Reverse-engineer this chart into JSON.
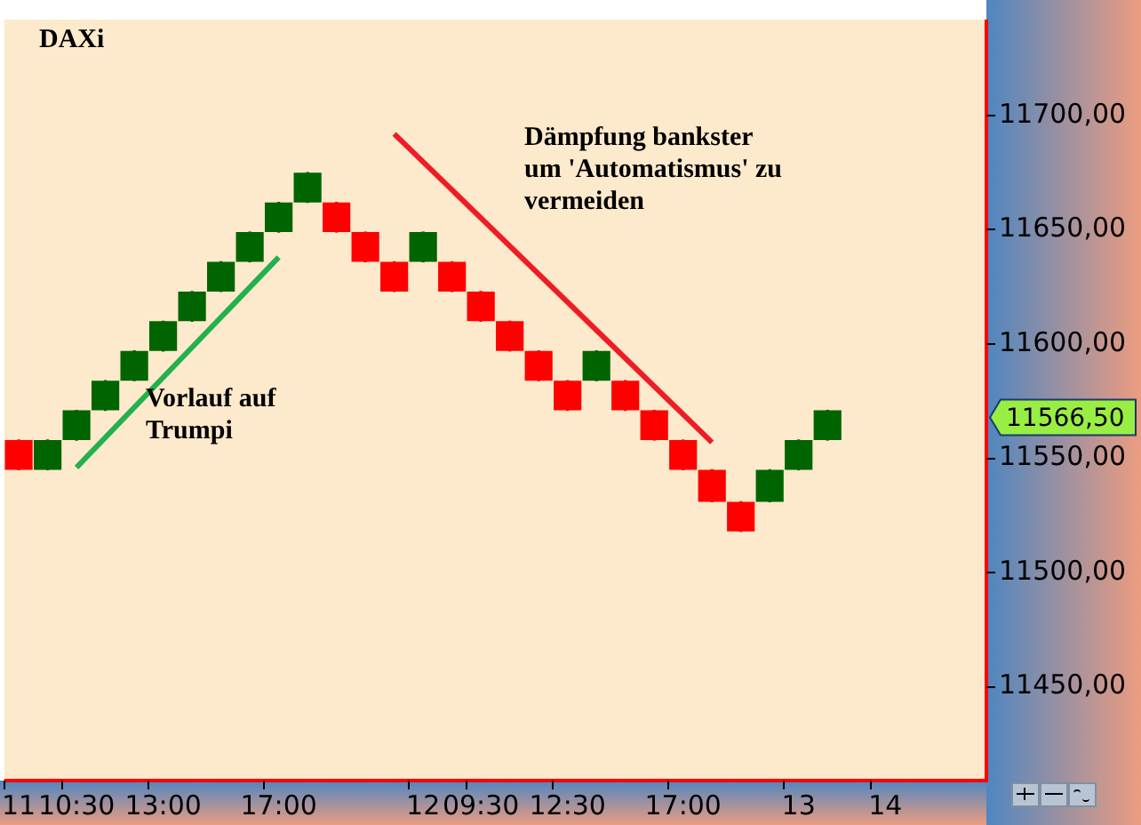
{
  "chart_data": {
    "type": "candlestick",
    "title": "DAXi",
    "categories": [
      "11",
      null,
      "10:30",
      null,
      null,
      "13:00",
      null,
      null,
      null,
      "17:00",
      null,
      null,
      null,
      null,
      "12",
      null,
      "09:30",
      null,
      null,
      "12:30",
      null,
      null,
      null,
      "17:00",
      null,
      null,
      null,
      "13",
      null,
      null,
      "14",
      null,
      null,
      null
    ],
    "ohlc": [
      [
        11558,
        11558,
        11545,
        11545
      ],
      [
        11545,
        11558,
        11545,
        11558
      ],
      [
        11558,
        11571,
        11558,
        11571
      ],
      [
        11571,
        11584,
        11571,
        11584
      ],
      [
        11584,
        11597,
        11584,
        11597
      ],
      [
        11597,
        11610,
        11597,
        11610
      ],
      [
        11610,
        11623,
        11610,
        11623
      ],
      [
        11623,
        11636,
        11623,
        11636
      ],
      [
        11636,
        11649,
        11636,
        11649
      ],
      [
        11649,
        11662,
        11649,
        11662
      ],
      [
        11662,
        11675,
        11662,
        11675
      ],
      [
        11662,
        11662,
        11649,
        11649
      ],
      [
        11649,
        11649,
        11636,
        11636
      ],
      [
        11636,
        11636,
        11623,
        11623
      ],
      [
        11636,
        11649,
        11636,
        11649
      ],
      [
        11636,
        11636,
        11623,
        11623
      ],
      [
        11623,
        11623,
        11610,
        11610
      ],
      [
        11610,
        11610,
        11597,
        11597
      ],
      [
        11597,
        11597,
        11584,
        11584
      ],
      [
        11584,
        11584,
        11571,
        11571
      ],
      [
        11584,
        11597,
        11584,
        11597
      ],
      [
        11584,
        11584,
        11571,
        11571
      ],
      [
        11571,
        11571,
        11558,
        11558
      ],
      [
        11558,
        11558,
        11545,
        11545
      ],
      [
        11545,
        11545,
        11531,
        11531
      ],
      [
        11531,
        11531,
        11518,
        11518
      ],
      [
        11531,
        11545,
        11531,
        11545
      ],
      [
        11545,
        11558,
        11545,
        11558
      ],
      [
        11558,
        11571,
        11558,
        11571
      ],
      null,
      null,
      null,
      null,
      null
    ],
    "colors": [
      "#ff0000",
      "#006400",
      "#006400",
      "#006400",
      "#006400",
      "#006400",
      "#006400",
      "#006400",
      "#006400",
      "#006400",
      "#006400",
      "#ff0000",
      "#ff0000",
      "#ff0000",
      "#006400",
      "#ff0000",
      "#ff0000",
      "#ff0000",
      "#ff0000",
      "#ff0000",
      "#006400",
      "#ff0000",
      "#ff0000",
      "#ff0000",
      "#ff0000",
      "#ff0000",
      "#006400",
      "#006400",
      "#006400",
      null,
      null,
      null,
      null,
      null
    ],
    "series": [
      {
        "type": "line",
        "color": "#22b14c",
        "values": [
          null,
          null,
          11546,
          null,
          null,
          null,
          null,
          null,
          null,
          11638,
          null,
          null,
          null,
          null,
          null,
          null,
          null,
          null,
          null,
          null,
          null,
          null,
          null,
          null,
          null,
          null,
          null,
          null,
          null,
          null,
          null,
          null,
          null,
          null
        ]
      },
      {
        "type": "line",
        "color": "#ee1c25",
        "values": [
          null,
          null,
          null,
          null,
          null,
          null,
          null,
          null,
          null,
          null,
          null,
          null,
          null,
          11692,
          null,
          null,
          null,
          null,
          null,
          null,
          null,
          null,
          null,
          null,
          11557,
          null,
          null,
          null,
          null,
          null,
          null,
          null,
          null,
          null
        ]
      }
    ],
    "ylim": [
      11409,
      11742
    ],
    "yticks": [
      {
        "value": 11450,
        "label": "11450,00"
      },
      {
        "value": 11500,
        "label": "11500,00"
      },
      {
        "value": 11550,
        "label": "11550,00"
      },
      {
        "value": 11600,
        "label": "11600,00"
      },
      {
        "value": 11650,
        "label": "11650,00"
      },
      {
        "value": 11700,
        "label": "11700,00"
      }
    ],
    "annotations": [
      "Vorlauf auf\nTrumpi",
      "Dämpfung bankster\num 'Automatismus' zu\nvermeiden",
      "11566,50"
    ],
    "legend": false,
    "grid": false
  }
}
